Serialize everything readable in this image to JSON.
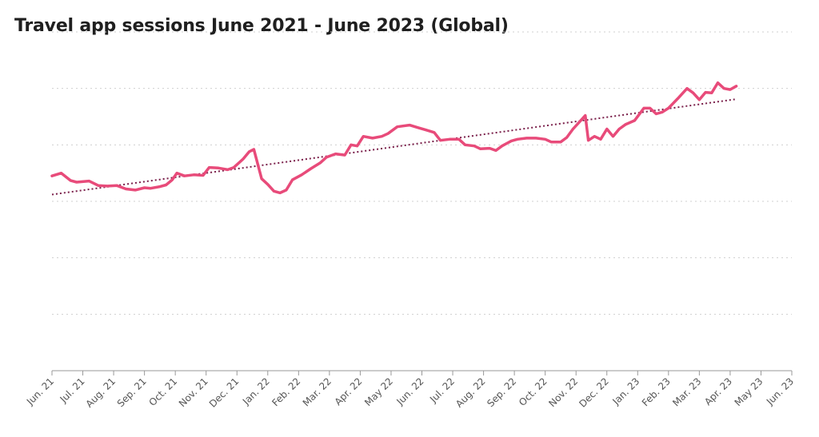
{
  "chart_data": {
    "type": "line",
    "title": "Travel app sessions June 2021 - June 2023 (Global)",
    "xlabel": "",
    "ylabel": "",
    "ylim": [
      0,
      6
    ],
    "grid": true,
    "legend": "none",
    "tick_labels": [
      "Jun. 21",
      "Jul. 21",
      "Aug. 21",
      "Sep. 21",
      "Oct. 21",
      "Nov. 21",
      "Dec. 21",
      "Jan. 22",
      "Feb. 22",
      "Mar. 22",
      "Apr. 22",
      "May 22",
      "Jun. 22",
      "Jul. 22",
      "Aug. 22",
      "Sep. 22",
      "Oct. 22",
      "Nov. 22",
      "Dec. 22",
      "Jan. 23",
      "Feb. 23",
      "Mar. 23",
      "Apr. 23",
      "May 23",
      "Jun. 23"
    ],
    "series": [
      {
        "line_color": "#e84b7a",
        "values": [
          [
            0.0,
            3.45
          ],
          [
            0.3,
            3.5
          ],
          [
            0.6,
            3.37
          ],
          [
            0.8,
            3.34
          ],
          [
            1.2,
            3.36
          ],
          [
            1.5,
            3.28
          ],
          [
            1.8,
            3.27
          ],
          [
            2.1,
            3.28
          ],
          [
            2.4,
            3.22
          ],
          [
            2.7,
            3.2
          ],
          [
            3.0,
            3.24
          ],
          [
            3.2,
            3.23
          ],
          [
            3.5,
            3.26
          ],
          [
            3.7,
            3.29
          ],
          [
            3.9,
            3.38
          ],
          [
            4.05,
            3.5
          ],
          [
            4.3,
            3.45
          ],
          [
            4.6,
            3.47
          ],
          [
            4.9,
            3.46
          ],
          [
            5.1,
            3.6
          ],
          [
            5.4,
            3.59
          ],
          [
            5.7,
            3.56
          ],
          [
            5.9,
            3.6
          ],
          [
            6.2,
            3.75
          ],
          [
            6.4,
            3.88
          ],
          [
            6.55,
            3.92
          ],
          [
            6.8,
            3.4
          ],
          [
            7.0,
            3.3
          ],
          [
            7.2,
            3.18
          ],
          [
            7.4,
            3.15
          ],
          [
            7.6,
            3.2
          ],
          [
            7.8,
            3.38
          ],
          [
            8.1,
            3.47
          ],
          [
            8.4,
            3.58
          ],
          [
            8.7,
            3.68
          ],
          [
            8.9,
            3.78
          ],
          [
            9.2,
            3.84
          ],
          [
            9.5,
            3.82
          ],
          [
            9.7,
            4.0
          ],
          [
            9.9,
            3.98
          ],
          [
            10.1,
            4.15
          ],
          [
            10.4,
            4.12
          ],
          [
            10.7,
            4.15
          ],
          [
            10.9,
            4.2
          ],
          [
            11.2,
            4.32
          ],
          [
            11.6,
            4.35
          ],
          [
            11.9,
            4.3
          ],
          [
            12.1,
            4.27
          ],
          [
            12.4,
            4.22
          ],
          [
            12.6,
            4.08
          ],
          [
            12.9,
            4.1
          ],
          [
            13.2,
            4.1
          ],
          [
            13.4,
            4.0
          ],
          [
            13.7,
            3.98
          ],
          [
            13.9,
            3.93
          ],
          [
            14.2,
            3.94
          ],
          [
            14.4,
            3.9
          ],
          [
            14.6,
            3.98
          ],
          [
            14.9,
            4.07
          ],
          [
            15.1,
            4.1
          ],
          [
            15.4,
            4.12
          ],
          [
            15.7,
            4.12
          ],
          [
            16.0,
            4.1
          ],
          [
            16.2,
            4.05
          ],
          [
            16.5,
            4.05
          ],
          [
            16.7,
            4.13
          ],
          [
            16.9,
            4.28
          ],
          [
            17.1,
            4.4
          ],
          [
            17.3,
            4.52
          ],
          [
            17.4,
            4.08
          ],
          [
            17.6,
            4.15
          ],
          [
            17.8,
            4.1
          ],
          [
            18.0,
            4.28
          ],
          [
            18.2,
            4.15
          ],
          [
            18.4,
            4.28
          ],
          [
            18.6,
            4.36
          ],
          [
            18.9,
            4.43
          ],
          [
            19.2,
            4.65
          ],
          [
            19.4,
            4.65
          ],
          [
            19.6,
            4.55
          ],
          [
            19.8,
            4.58
          ],
          [
            20.0,
            4.65
          ],
          [
            20.3,
            4.82
          ],
          [
            20.6,
            5.0
          ],
          [
            20.8,
            4.92
          ],
          [
            21.0,
            4.8
          ],
          [
            21.2,
            4.93
          ],
          [
            21.4,
            4.92
          ],
          [
            21.6,
            5.1
          ],
          [
            21.8,
            5.0
          ],
          [
            22.0,
            4.98
          ],
          [
            22.2,
            5.04
          ]
        ]
      }
    ],
    "trendline": {
      "style": "dotted",
      "color": "#7a1f4a",
      "start": [
        0,
        3.12
      ],
      "end": [
        22.2,
        4.81
      ]
    },
    "colors": {
      "line": "#e84b7a",
      "trend": "#7a1f4a",
      "grid": "#cfcfcf",
      "axis": "#999999"
    }
  }
}
